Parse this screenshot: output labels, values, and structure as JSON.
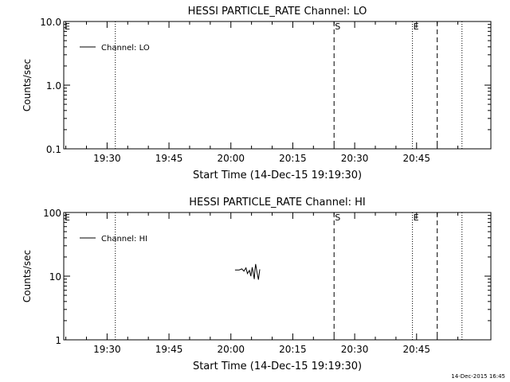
{
  "timestamp": "14-Dec-2015 16:45",
  "chart_data": [
    {
      "type": "line",
      "title": "HESSI PARTICLE_RATE Channel: LO",
      "xlabel": "Start Time (14-Dec-15 19:19:30)",
      "ylabel": "Counts/sec",
      "y_scale": "log",
      "ylim": [
        0.1,
        10.0
      ],
      "y_ticks": [
        "0.1",
        "1.0",
        "10.0"
      ],
      "x_range": [
        "19:19:30",
        "21:03"
      ],
      "x_ticks": [
        "19:30",
        "19:45",
        "20:00",
        "20:15",
        "20:30",
        "20:45"
      ],
      "grid": false,
      "legend_position": "top-left",
      "series": [
        {
          "name": "Channel: LO",
          "x": [],
          "y": []
        }
      ],
      "markers": [
        {
          "time": "19:19:30",
          "style": "dotted",
          "label": "E"
        },
        {
          "time": "19:32",
          "style": "dotted",
          "label": ""
        },
        {
          "time": "20:25",
          "style": "dashed",
          "label": "S"
        },
        {
          "time": "20:44",
          "style": "dotted",
          "label": "E"
        },
        {
          "time": "20:50",
          "style": "dashed",
          "label": ""
        },
        {
          "time": "20:56",
          "style": "dotted",
          "label": ""
        }
      ]
    },
    {
      "type": "line",
      "title": "HESSI PARTICLE_RATE Channel: HI",
      "xlabel": "Start Time (14-Dec-15 19:19:30)",
      "ylabel": "Counts/sec",
      "y_scale": "log",
      "ylim": [
        1,
        100
      ],
      "y_ticks": [
        "1",
        "10",
        "100"
      ],
      "x_range": [
        "19:19:30",
        "21:03"
      ],
      "x_ticks": [
        "19:30",
        "19:45",
        "20:00",
        "20:15",
        "20:30",
        "20:45"
      ],
      "grid": false,
      "legend_position": "top-left",
      "series": [
        {
          "name": "Channel: HI",
          "x": [
            "20:01:00",
            "20:02:00",
            "20:02:40",
            "20:03:10",
            "20:03:40",
            "20:04:00",
            "20:04:30",
            "20:04:50",
            "20:05:10",
            "20:05:40",
            "20:05:50",
            "20:06:00",
            "20:06:20",
            "20:06:40",
            "20:07:00"
          ],
          "y": [
            12.5,
            12.5,
            13.0,
            12.0,
            13.5,
            11.0,
            12.3,
            10.0,
            13.8,
            9.0,
            12.5,
            15.5,
            11.5,
            8.8,
            12.8
          ]
        }
      ],
      "markers": [
        {
          "time": "19:19:30",
          "style": "dotted",
          "label": "E"
        },
        {
          "time": "19:32",
          "style": "dotted",
          "label": ""
        },
        {
          "time": "20:25",
          "style": "dashed",
          "label": "S"
        },
        {
          "time": "20:44",
          "style": "dotted",
          "label": "E"
        },
        {
          "time": "20:50",
          "style": "dashed",
          "label": ""
        },
        {
          "time": "20:56",
          "style": "dotted",
          "label": ""
        }
      ]
    }
  ]
}
